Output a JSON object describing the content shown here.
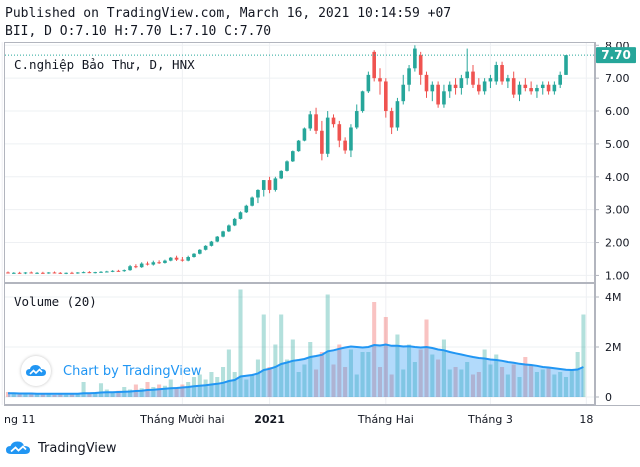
{
  "header": {
    "published": "Published on TradingView.com, March 16, 2021 10:14:59 +07",
    "ohlc": "BII, D O:7.10 H:7.70 L:7.10 C:7.70"
  },
  "legend": {
    "symbol_title": "C.nghiệp Bảo Thư, D, HNX",
    "volume_label": "Volume (20)"
  },
  "watermark": {
    "text": "Chart by TradingView"
  },
  "footer": {
    "brand": "TradingView"
  },
  "last_price_label": "7.70",
  "colors": {
    "up": "#26a69a",
    "down": "#ef5350",
    "volume_ma": "#2196f3",
    "price_line": "#26a69a"
  },
  "icons": [
    "tradingview-cloud-icon",
    "tradingview-logo-icon"
  ],
  "chart_data": [
    {
      "type": "candlestick",
      "title": "C.nghiệp Bảo Thư, D, HNX",
      "x_tick_labels": [
        "ng 11",
        "Tháng Mười hai",
        "2021",
        "Tháng Hai",
        "Tháng 3",
        "18"
      ],
      "y_tick_labels": [
        "8.00",
        "7.00",
        "6.00",
        "5.00",
        "4.00",
        "3.00",
        "2.00",
        "1.00"
      ],
      "ylim": [
        0.8,
        8.1
      ],
      "grid": true,
      "last_close": 7.7,
      "candles": [
        {
          "o": 1.09,
          "h": 1.12,
          "l": 1.06,
          "c": 1.07
        },
        {
          "o": 1.07,
          "h": 1.1,
          "l": 1.05,
          "c": 1.08
        },
        {
          "o": 1.08,
          "h": 1.11,
          "l": 1.05,
          "c": 1.06
        },
        {
          "o": 1.06,
          "h": 1.1,
          "l": 1.04,
          "c": 1.09
        },
        {
          "o": 1.09,
          "h": 1.12,
          "l": 1.06,
          "c": 1.07
        },
        {
          "o": 1.07,
          "h": 1.1,
          "l": 1.05,
          "c": 1.08
        },
        {
          "o": 1.08,
          "h": 1.11,
          "l": 1.05,
          "c": 1.07
        },
        {
          "o": 1.07,
          "h": 1.1,
          "l": 1.05,
          "c": 1.09
        },
        {
          "o": 1.09,
          "h": 1.12,
          "l": 1.06,
          "c": 1.08
        },
        {
          "o": 1.08,
          "h": 1.1,
          "l": 1.05,
          "c": 1.06
        },
        {
          "o": 1.06,
          "h": 1.09,
          "l": 1.04,
          "c": 1.08
        },
        {
          "o": 1.08,
          "h": 1.11,
          "l": 1.06,
          "c": 1.07
        },
        {
          "o": 1.07,
          "h": 1.1,
          "l": 1.05,
          "c": 1.09
        },
        {
          "o": 1.09,
          "h": 1.12,
          "l": 1.07,
          "c": 1.1
        },
        {
          "o": 1.1,
          "h": 1.13,
          "l": 1.07,
          "c": 1.08
        },
        {
          "o": 1.08,
          "h": 1.11,
          "l": 1.06,
          "c": 1.1
        },
        {
          "o": 1.1,
          "h": 1.13,
          "l": 1.08,
          "c": 1.11
        },
        {
          "o": 1.11,
          "h": 1.14,
          "l": 1.09,
          "c": 1.12
        },
        {
          "o": 1.12,
          "h": 1.16,
          "l": 1.1,
          "c": 1.14
        },
        {
          "o": 1.14,
          "h": 1.17,
          "l": 1.11,
          "c": 1.13
        },
        {
          "o": 1.13,
          "h": 1.18,
          "l": 1.11,
          "c": 1.16
        },
        {
          "o": 1.16,
          "h": 1.32,
          "l": 1.14,
          "c": 1.28
        },
        {
          "o": 1.28,
          "h": 1.34,
          "l": 1.22,
          "c": 1.25
        },
        {
          "o": 1.25,
          "h": 1.4,
          "l": 1.23,
          "c": 1.36
        },
        {
          "o": 1.36,
          "h": 1.42,
          "l": 1.3,
          "c": 1.33
        },
        {
          "o": 1.33,
          "h": 1.45,
          "l": 1.3,
          "c": 1.4
        },
        {
          "o": 1.4,
          "h": 1.46,
          "l": 1.35,
          "c": 1.38
        },
        {
          "o": 1.38,
          "h": 1.48,
          "l": 1.36,
          "c": 1.45
        },
        {
          "o": 1.45,
          "h": 1.56,
          "l": 1.43,
          "c": 1.54
        },
        {
          "o": 1.54,
          "h": 1.6,
          "l": 1.44,
          "c": 1.48
        },
        {
          "o": 1.48,
          "h": 1.56,
          "l": 1.42,
          "c": 1.45
        },
        {
          "o": 1.45,
          "h": 1.6,
          "l": 1.43,
          "c": 1.56
        },
        {
          "o": 1.56,
          "h": 1.68,
          "l": 1.54,
          "c": 1.66
        },
        {
          "o": 1.66,
          "h": 1.8,
          "l": 1.64,
          "c": 1.78
        },
        {
          "o": 1.78,
          "h": 1.92,
          "l": 1.76,
          "c": 1.9
        },
        {
          "o": 1.9,
          "h": 2.05,
          "l": 1.88,
          "c": 2.03
        },
        {
          "o": 2.03,
          "h": 2.2,
          "l": 2.01,
          "c": 2.18
        },
        {
          "o": 2.18,
          "h": 2.36,
          "l": 2.16,
          "c": 2.34
        },
        {
          "o": 2.34,
          "h": 2.55,
          "l": 2.32,
          "c": 2.52
        },
        {
          "o": 2.52,
          "h": 2.75,
          "l": 2.5,
          "c": 2.72
        },
        {
          "o": 2.72,
          "h": 2.95,
          "l": 2.7,
          "c": 2.92
        },
        {
          "o": 2.92,
          "h": 3.15,
          "l": 2.9,
          "c": 3.12
        },
        {
          "o": 3.12,
          "h": 3.4,
          "l": 3.1,
          "c": 3.37
        },
        {
          "o": 3.37,
          "h": 3.62,
          "l": 3.2,
          "c": 3.6
        },
        {
          "o": 3.6,
          "h": 3.9,
          "l": 3.4,
          "c": 3.9
        },
        {
          "o": 3.9,
          "h": 4.0,
          "l": 3.5,
          "c": 3.6
        },
        {
          "o": 3.6,
          "h": 4.0,
          "l": 3.55,
          "c": 3.95
        },
        {
          "o": 3.95,
          "h": 4.2,
          "l": 3.93,
          "c": 4.18
        },
        {
          "o": 4.18,
          "h": 4.5,
          "l": 4.16,
          "c": 4.47
        },
        {
          "o": 4.47,
          "h": 4.8,
          "l": 4.45,
          "c": 4.78
        },
        {
          "o": 4.78,
          "h": 5.12,
          "l": 4.76,
          "c": 5.1
        },
        {
          "o": 5.1,
          "h": 5.5,
          "l": 5.08,
          "c": 5.47
        },
        {
          "o": 5.47,
          "h": 6.0,
          "l": 5.4,
          "c": 5.9
        },
        {
          "o": 5.9,
          "h": 6.1,
          "l": 5.3,
          "c": 5.4
        },
        {
          "o": 5.4,
          "h": 5.7,
          "l": 4.5,
          "c": 4.7
        },
        {
          "o": 4.7,
          "h": 6.0,
          "l": 4.6,
          "c": 5.8
        },
        {
          "o": 5.8,
          "h": 5.9,
          "l": 5.5,
          "c": 5.6
        },
        {
          "o": 5.6,
          "h": 5.7,
          "l": 4.9,
          "c": 5.1
        },
        {
          "o": 5.1,
          "h": 5.2,
          "l": 4.7,
          "c": 4.8
        },
        {
          "o": 4.8,
          "h": 5.6,
          "l": 4.6,
          "c": 5.5
        },
        {
          "o": 5.5,
          "h": 6.2,
          "l": 5.45,
          "c": 6.0
        },
        {
          "o": 6.0,
          "h": 6.62,
          "l": 5.95,
          "c": 6.6
        },
        {
          "o": 6.6,
          "h": 7.2,
          "l": 6.55,
          "c": 7.1
        },
        {
          "o": 7.8,
          "h": 7.85,
          "l": 6.9,
          "c": 7.0
        },
        {
          "o": 7.0,
          "h": 7.3,
          "l": 6.5,
          "c": 6.9
        },
        {
          "o": 6.9,
          "h": 7.0,
          "l": 5.8,
          "c": 6.0
        },
        {
          "o": 6.0,
          "h": 6.1,
          "l": 5.3,
          "c": 5.5
        },
        {
          "o": 5.5,
          "h": 6.4,
          "l": 5.4,
          "c": 6.3
        },
        {
          "o": 6.3,
          "h": 7.1,
          "l": 6.2,
          "c": 6.8
        },
        {
          "o": 6.8,
          "h": 7.4,
          "l": 6.6,
          "c": 7.3
        },
        {
          "o": 7.3,
          "h": 8.0,
          "l": 7.2,
          "c": 7.9
        },
        {
          "o": 7.7,
          "h": 7.8,
          "l": 6.8,
          "c": 7.1
        },
        {
          "o": 7.1,
          "h": 7.2,
          "l": 6.4,
          "c": 6.6
        },
        {
          "o": 6.6,
          "h": 6.9,
          "l": 6.3,
          "c": 6.8
        },
        {
          "o": 6.8,
          "h": 6.9,
          "l": 6.1,
          "c": 6.2
        },
        {
          "o": 6.2,
          "h": 6.8,
          "l": 6.1,
          "c": 6.6
        },
        {
          "o": 6.6,
          "h": 6.9,
          "l": 6.4,
          "c": 6.8
        },
        {
          "o": 6.8,
          "h": 7.0,
          "l": 6.5,
          "c": 6.7
        },
        {
          "o": 6.7,
          "h": 7.1,
          "l": 6.5,
          "c": 7.0
        },
        {
          "o": 7.0,
          "h": 7.9,
          "l": 6.8,
          "c": 7.2
        },
        {
          "o": 7.2,
          "h": 7.4,
          "l": 6.7,
          "c": 6.8
        },
        {
          "o": 6.8,
          "h": 7.0,
          "l": 6.5,
          "c": 6.6
        },
        {
          "o": 6.6,
          "h": 7.0,
          "l": 6.5,
          "c": 6.9
        },
        {
          "o": 6.9,
          "h": 7.1,
          "l": 6.7,
          "c": 7.0
        },
        {
          "o": 6.9,
          "h": 7.5,
          "l": 6.8,
          "c": 7.4
        },
        {
          "o": 7.4,
          "h": 7.5,
          "l": 6.8,
          "c": 6.9
        },
        {
          "o": 6.9,
          "h": 7.1,
          "l": 6.7,
          "c": 7.0
        },
        {
          "o": 7.0,
          "h": 7.2,
          "l": 6.4,
          "c": 6.5
        },
        {
          "o": 6.5,
          "h": 6.9,
          "l": 6.3,
          "c": 6.8
        },
        {
          "o": 6.8,
          "h": 7.0,
          "l": 6.6,
          "c": 6.7
        },
        {
          "o": 6.7,
          "h": 6.9,
          "l": 6.5,
          "c": 6.6
        },
        {
          "o": 6.6,
          "h": 6.8,
          "l": 6.4,
          "c": 6.7
        },
        {
          "o": 6.7,
          "h": 6.9,
          "l": 6.5,
          "c": 6.8
        },
        {
          "o": 6.8,
          "h": 6.9,
          "l": 6.5,
          "c": 6.6
        },
        {
          "o": 6.6,
          "h": 6.9,
          "l": 6.5,
          "c": 6.8
        },
        {
          "o": 6.8,
          "h": 7.2,
          "l": 6.7,
          "c": 7.1
        },
        {
          "o": 7.1,
          "h": 7.7,
          "l": 7.1,
          "c": 7.7
        }
      ]
    },
    {
      "type": "bar",
      "title": "Volume (20)",
      "y_tick_labels": [
        "4M",
        "2M",
        "0"
      ],
      "ylim": [
        0,
        4200000
      ],
      "values": [
        200000,
        150000,
        100000,
        120000,
        180000,
        100000,
        150000,
        120000,
        80000,
        100000,
        90000,
        110000,
        100000,
        600000,
        150000,
        200000,
        550000,
        300000,
        180000,
        250000,
        400000,
        300000,
        500000,
        350000,
        600000,
        400000,
        500000,
        450000,
        700000,
        400000,
        500000,
        600000,
        800000,
        900000,
        700000,
        1000000,
        800000,
        1200000,
        1900000,
        1000000,
        4300000,
        700000,
        900000,
        1500000,
        3300000,
        1200000,
        2100000,
        3300000,
        1500000,
        2300000,
        1000000,
        1300000,
        2200000,
        1100000,
        1800000,
        4100000,
        1300000,
        2100000,
        1200000,
        1900000,
        900000,
        1800000,
        1800000,
        3800000,
        1200000,
        3200000,
        900000,
        2500000,
        1100000,
        2100000,
        1400000,
        1900000,
        3100000,
        1700000,
        1500000,
        2300000,
        1100000,
        1200000,
        1100000,
        1400000,
        900000,
        1000000,
        1900000,
        1300000,
        1700000,
        1200000,
        900000,
        1300000,
        800000,
        1600000,
        1300000,
        1000000,
        1100000,
        1200000,
        900000,
        1000000,
        800000,
        1100000,
        1800000,
        3300000
      ],
      "series": [
        {
          "name": "Volume (20)",
          "values": [
            150000,
            150000,
            140000,
            140000,
            140000,
            130000,
            130000,
            130000,
            130000,
            130000,
            130000,
            130000,
            130000,
            150000,
            150000,
            160000,
            180000,
            190000,
            190000,
            200000,
            210000,
            220000,
            240000,
            250000,
            280000,
            290000,
            310000,
            330000,
            350000,
            360000,
            380000,
            400000,
            430000,
            450000,
            470000,
            500000,
            530000,
            570000,
            640000,
            680000,
            820000,
            850000,
            880000,
            940000,
            1080000,
            1130000,
            1200000,
            1320000,
            1380000,
            1450000,
            1480000,
            1520000,
            1600000,
            1640000,
            1690000,
            1830000,
            1870000,
            1930000,
            1980000,
            2020000,
            2000000,
            1980000,
            2000000,
            2080000,
            2060000,
            2100000,
            2050000,
            2050000,
            2020000,
            2030000,
            2000000,
            1980000,
            2000000,
            1960000,
            1900000,
            1870000,
            1800000,
            1750000,
            1700000,
            1650000,
            1600000,
            1560000,
            1540000,
            1500000,
            1480000,
            1450000,
            1400000,
            1370000,
            1330000,
            1300000,
            1280000,
            1250000,
            1200000,
            1180000,
            1150000,
            1120000,
            1090000,
            1080000,
            1100000,
            1200000
          ]
        }
      ]
    }
  ]
}
